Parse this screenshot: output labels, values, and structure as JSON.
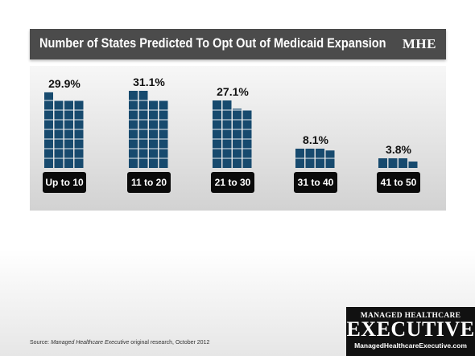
{
  "header": {
    "title": "Number of States Predicted To Opt Out of Medicaid Expansion",
    "logo": "MHE"
  },
  "chart_data": {
    "type": "bar",
    "title": "Number of States Predicted To Opt Out of Medicaid Expansion",
    "categories": [
      "Up to 10",
      "11 to 20",
      "21 to 30",
      "31 to 40",
      "41 to 50"
    ],
    "values": [
      29.9,
      31.1,
      27.1,
      8.1,
      3.8
    ],
    "value_labels": [
      "29.9%",
      "31.1%",
      "27.1%",
      "8.1%",
      "3.8%"
    ],
    "unit": "%",
    "colors": {
      "bar": "#174a6e",
      "label_box": "#0a0a0a"
    }
  },
  "footer": {
    "source_prefix": "Source: ",
    "source_italic": "Managed Healthcare Executive",
    "source_suffix": " original research, October 2012",
    "logo_top": "MANAGED HEALTHCARE",
    "logo_main": "EXECUTIVE",
    "logo_url": "ManagedHealthcareExecutive.com"
  }
}
